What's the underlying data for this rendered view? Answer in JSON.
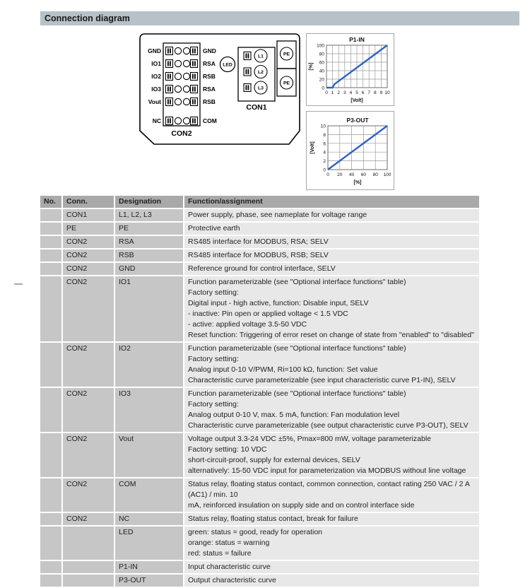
{
  "page": {
    "section_title": "Connection diagram"
  },
  "colors": {
    "section_bar_bg": "#b7c1c7",
    "table_header_bg": "#a9a9a9",
    "table_left_cols_bg": "#c6c6c6",
    "table_function_col_bg": "#e8e8e8",
    "chart_line_blue": "#2f62c1"
  },
  "diagram": {
    "con2": {
      "label": "CON2",
      "rows": [
        {
          "left": "GND",
          "right": "GND"
        },
        {
          "left": "IO1",
          "right": "RSA"
        },
        {
          "left": "IO2",
          "right": "RSB"
        },
        {
          "left": "IO3",
          "right": "RSA"
        },
        {
          "left": "Vout",
          "right": "RSB"
        },
        {
          "left": "NC",
          "right": "COM"
        }
      ]
    },
    "con1": {
      "label": "CON1",
      "phases": [
        "L1",
        "L2",
        "L3"
      ]
    },
    "led_label": "LED",
    "pe_label": "PE"
  },
  "chart_data": [
    {
      "id": "p1_in",
      "type": "line",
      "title": "P1-IN",
      "xlabel": "[Volt]",
      "ylabel": "[%]",
      "xlim": [
        0,
        10
      ],
      "ylim": [
        0,
        100
      ],
      "xticks": [
        0,
        1,
        2,
        3,
        4,
        5,
        6,
        7,
        8,
        9,
        10
      ],
      "yticks": [
        0,
        20,
        40,
        60,
        80,
        100
      ],
      "grid": true,
      "points": [
        [
          0,
          0
        ],
        [
          1,
          0
        ],
        [
          1.3,
          8
        ],
        [
          10,
          100
        ]
      ],
      "line_color": "#2f62c1"
    },
    {
      "id": "p3_out",
      "type": "line",
      "title": "P3-OUT",
      "xlabel": "[%]",
      "ylabel": "[Volt]",
      "xlim": [
        0,
        100
      ],
      "ylim": [
        0,
        10
      ],
      "xticks": [
        0,
        20,
        40,
        60,
        80,
        100
      ],
      "yticks": [
        0,
        2,
        4,
        6,
        8,
        10
      ],
      "grid": true,
      "points": [
        [
          0,
          0
        ],
        [
          100,
          10
        ]
      ],
      "line_color": "#2f62c1"
    }
  ],
  "table": {
    "headers": [
      "No.",
      "Conn.",
      "Designation",
      "Function/assignment"
    ],
    "rows": [
      {
        "no": "",
        "conn": "CON1",
        "designation": "L1, L2, L3",
        "function": "Power supply, phase, see nameplate for voltage range"
      },
      {
        "no": "",
        "conn": "PE",
        "designation": "PE",
        "function": "Protective earth"
      },
      {
        "no": "",
        "conn": "CON2",
        "designation": "RSA",
        "function": "RS485 interface for MODBUS, RSA; SELV"
      },
      {
        "no": "",
        "conn": "CON2",
        "designation": "RSB",
        "function": "RS485 interface for MODBUS, RSB; SELV"
      },
      {
        "no": "",
        "conn": "CON2",
        "designation": "GND",
        "function": "Reference ground for control interface, SELV"
      },
      {
        "no": "",
        "conn": "CON2",
        "designation": "IO1",
        "function": "Function parameterizable (see \"Optional interface functions\" table)\nFactory setting:\nDigital input - high active, function: Disable input, SELV\n- inactive: Pin open or applied voltage < 1.5 VDC\n- active: applied voltage 3.5-50 VDC\nReset function: Triggering of error reset on change of state from \"enabled\" to \"disabled\""
      },
      {
        "no": "",
        "conn": "CON2",
        "designation": "IO2",
        "function": "Function parameterizable (see \"Optional interface functions\" table)\nFactory setting:\nAnalog input 0-10 V/PWM, Ri=100 kΩ, function: Set value\nCharacteristic curve parameterizable (see input characteristic curve P1-IN), SELV"
      },
      {
        "no": "",
        "conn": "CON2",
        "designation": "IO3",
        "function": "Function parameterizable (see \"Optional interface functions\" table)\nFactory setting:\nAnalog output 0-10 V, max. 5 mA, function: Fan modulation level\nCharacteristic curve parameterizable (see output characteristic curve P3-OUT), SELV"
      },
      {
        "no": "",
        "conn": "CON2",
        "designation": "Vout",
        "function": "Voltage output 3.3-24 VDC ±5%, Pmax=800 mW, voltage parameterizable\nFactory setting: 10 VDC\nshort-circuit-proof, supply for external devices, SELV\nalternatively: 15-50 VDC input for parameterization via MODBUS without line voltage"
      },
      {
        "no": "",
        "conn": "CON2",
        "designation": "COM",
        "function": "Status relay, floating status contact, common connection, contact rating 250 VAC / 2 A (AC1) / min. 10\nmA, reinforced insulation on supply side and on control interface side"
      },
      {
        "no": "",
        "conn": "CON2",
        "designation": "NC",
        "function": "Status relay, floating status contact, break for failure"
      },
      {
        "no": "",
        "conn": "",
        "designation": "LED",
        "function": "green: status = good, ready for operation\norange: status = warning\nred: status = failure"
      },
      {
        "no": "",
        "conn": "",
        "designation": "P1-IN",
        "function": "Input characteristic curve"
      },
      {
        "no": "",
        "conn": "",
        "designation": "P3-OUT",
        "function": "Output characteristic curve"
      }
    ]
  }
}
